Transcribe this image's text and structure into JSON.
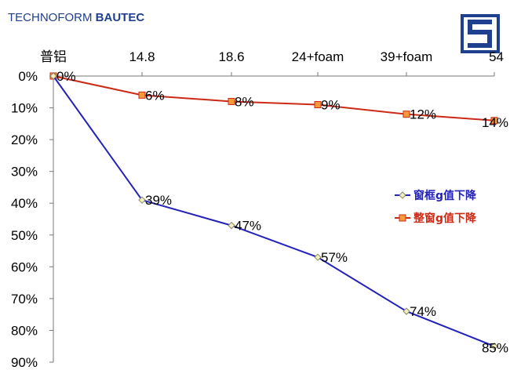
{
  "brand": {
    "name_light": "TECHNOFORM",
    "name_bold": "BAUTEC",
    "color": "#1f3f8f",
    "logo_icon": "technoform-logo-icon"
  },
  "chart_data": {
    "type": "line",
    "categories": [
      "普铝",
      "14.8",
      "18.6",
      "24+foam",
      "39+foam",
      "54"
    ],
    "y_axis": {
      "range": [
        0,
        90
      ],
      "inverted": true,
      "ticks": [
        0,
        10,
        20,
        30,
        40,
        50,
        60,
        70,
        80,
        90
      ],
      "tick_labels": [
        "0%",
        "10%",
        "20%",
        "30%",
        "40%",
        "50%",
        "60%",
        "70%",
        "80%",
        "90%"
      ]
    },
    "x_axis_position": "top",
    "grid": false,
    "legend": {
      "placement": "right"
    },
    "series": [
      {
        "name": "窗框g值下降",
        "color": "#2222bb",
        "marker": "diamond",
        "values": [
          0,
          39,
          47,
          57,
          74,
          85
        ],
        "labels": [
          "",
          "39%",
          "47%",
          "57%",
          "74%",
          "85%"
        ]
      },
      {
        "name": "整窗g值下降",
        "color": "#cc2a14",
        "marker": "square",
        "values": [
          0,
          6,
          8,
          9,
          12,
          14
        ],
        "labels": [
          "0%",
          "6%",
          "8%",
          "9%",
          "12%",
          "14%"
        ]
      }
    ]
  }
}
